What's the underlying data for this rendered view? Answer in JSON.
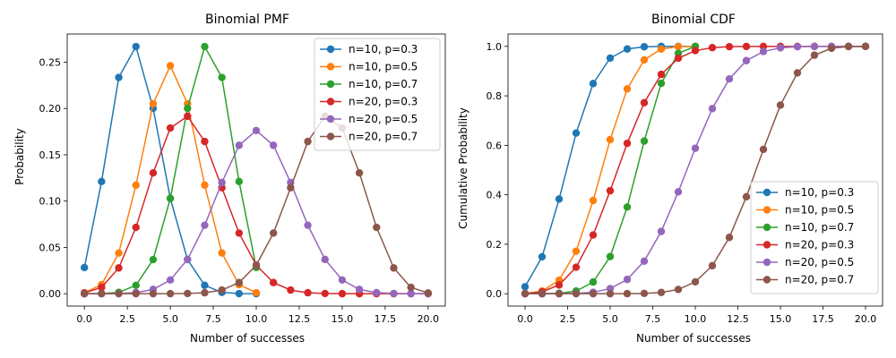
{
  "chart_data": [
    {
      "type": "line",
      "title": "Binomial PMF",
      "xlabel": "Number of successes",
      "ylabel": "Probability",
      "xlim": [
        -1,
        21
      ],
      "ylim": [
        -0.0134,
        0.2804
      ],
      "xticks": [
        0,
        2.5,
        5,
        7.5,
        10,
        12.5,
        15,
        17.5,
        20
      ],
      "xtick_labels": [
        "0.0",
        "2.5",
        "5.0",
        "7.5",
        "10.0",
        "12.5",
        "15.0",
        "17.5",
        "20.0"
      ],
      "yticks": [
        0,
        0.05,
        0.1,
        0.15,
        0.2,
        0.25
      ],
      "ytick_labels": [
        "0.00",
        "0.05",
        "0.10",
        "0.15",
        "0.20",
        "0.25"
      ],
      "grid": false,
      "legend_position": "top-right",
      "series": [
        {
          "name": "n=10, p=0.3",
          "color": "#1f77b4",
          "x": [
            0,
            1,
            2,
            3,
            4,
            5,
            6,
            7,
            8,
            9,
            10
          ],
          "y": [
            0.0282,
            0.1211,
            0.2335,
            0.2668,
            0.2001,
            0.1029,
            0.0368,
            0.009,
            0.0014,
            0.0001,
            0.0
          ]
        },
        {
          "name": "n=10, p=0.5",
          "color": "#ff7f0e",
          "x": [
            0,
            1,
            2,
            3,
            4,
            5,
            6,
            7,
            8,
            9,
            10
          ],
          "y": [
            0.001,
            0.0098,
            0.0439,
            0.1172,
            0.2051,
            0.2461,
            0.2051,
            0.1172,
            0.0439,
            0.0098,
            0.001
          ]
        },
        {
          "name": "n=10, p=0.7",
          "color": "#2ca02c",
          "x": [
            0,
            1,
            2,
            3,
            4,
            5,
            6,
            7,
            8,
            9,
            10
          ],
          "y": [
            0.0,
            0.0001,
            0.0014,
            0.009,
            0.0368,
            0.1029,
            0.2001,
            0.2668,
            0.2335,
            0.1211,
            0.0282
          ]
        },
        {
          "name": "n=20, p=0.3",
          "color": "#d62728",
          "x": [
            0,
            1,
            2,
            3,
            4,
            5,
            6,
            7,
            8,
            9,
            10,
            11,
            12,
            13,
            14,
            15,
            16,
            17,
            18,
            19,
            20
          ],
          "y": [
            0.0008,
            0.0068,
            0.0278,
            0.0716,
            0.1304,
            0.1789,
            0.1916,
            0.1643,
            0.1144,
            0.0654,
            0.0308,
            0.012,
            0.0039,
            0.001,
            0.0002,
            0.0,
            0.0,
            0.0,
            0.0,
            0.0,
            0.0
          ]
        },
        {
          "name": "n=20, p=0.5",
          "color": "#9467bd",
          "x": [
            0,
            1,
            2,
            3,
            4,
            5,
            6,
            7,
            8,
            9,
            10,
            11,
            12,
            13,
            14,
            15,
            16,
            17,
            18,
            19,
            20
          ],
          "y": [
            0.0,
            0.0,
            0.0002,
            0.0011,
            0.0046,
            0.0148,
            0.037,
            0.0739,
            0.1201,
            0.1602,
            0.1762,
            0.1602,
            0.1201,
            0.0739,
            0.037,
            0.0148,
            0.0046,
            0.0011,
            0.0002,
            0.0,
            0.0
          ]
        },
        {
          "name": "n=20, p=0.7",
          "color": "#8c564b",
          "x": [
            0,
            1,
            2,
            3,
            4,
            5,
            6,
            7,
            8,
            9,
            10,
            11,
            12,
            13,
            14,
            15,
            16,
            17,
            18,
            19,
            20
          ],
          "y": [
            0.0,
            0.0,
            0.0,
            0.0,
            0.0,
            0.0,
            0.0002,
            0.001,
            0.0039,
            0.012,
            0.0308,
            0.0654,
            0.1144,
            0.1643,
            0.1916,
            0.1789,
            0.1304,
            0.0716,
            0.0278,
            0.0068,
            0.0008
          ]
        }
      ]
    },
    {
      "type": "line",
      "title": "Binomial CDF",
      "xlabel": "Number of successes",
      "ylabel": "Cumulative Probability",
      "xlim": [
        -1,
        21
      ],
      "ylim": [
        -0.05,
        1.05
      ],
      "xticks": [
        0,
        2.5,
        5,
        7.5,
        10,
        12.5,
        15,
        17.5,
        20
      ],
      "xtick_labels": [
        "0.0",
        "2.5",
        "5.0",
        "7.5",
        "10.0",
        "12.5",
        "15.0",
        "17.5",
        "20.0"
      ],
      "yticks": [
        0,
        0.2,
        0.4,
        0.6,
        0.8,
        1.0
      ],
      "ytick_labels": [
        "0.0",
        "0.2",
        "0.4",
        "0.6",
        "0.8",
        "1.0"
      ],
      "grid": false,
      "legend_position": "bottom-right",
      "series": [
        {
          "name": "n=10, p=0.3",
          "color": "#1f77b4",
          "x": [
            0,
            1,
            2,
            3,
            4,
            5,
            6,
            7,
            8,
            9,
            10
          ],
          "y": [
            0.0282,
            0.1493,
            0.3828,
            0.6496,
            0.8497,
            0.9527,
            0.9894,
            0.9984,
            0.9999,
            1.0,
            1.0
          ]
        },
        {
          "name": "n=10, p=0.5",
          "color": "#ff7f0e",
          "x": [
            0,
            1,
            2,
            3,
            4,
            5,
            6,
            7,
            8,
            9,
            10
          ],
          "y": [
            0.001,
            0.0107,
            0.0547,
            0.1719,
            0.377,
            0.623,
            0.8281,
            0.9453,
            0.9893,
            0.999,
            1.0
          ]
        },
        {
          "name": "n=10, p=0.7",
          "color": "#2ca02c",
          "x": [
            0,
            1,
            2,
            3,
            4,
            5,
            6,
            7,
            8,
            9,
            10
          ],
          "y": [
            0.0,
            0.0001,
            0.0016,
            0.0106,
            0.0473,
            0.1503,
            0.3504,
            0.6172,
            0.8507,
            0.9718,
            1.0
          ]
        },
        {
          "name": "n=20, p=0.3",
          "color": "#d62728",
          "x": [
            0,
            1,
            2,
            3,
            4,
            5,
            6,
            7,
            8,
            9,
            10,
            11,
            12,
            13,
            14,
            15,
            16,
            17,
            18,
            19,
            20
          ],
          "y": [
            0.0008,
            0.0076,
            0.0355,
            0.1071,
            0.2375,
            0.4164,
            0.608,
            0.7723,
            0.8867,
            0.952,
            0.9829,
            0.9949,
            0.9987,
            0.9997,
            1.0,
            1.0,
            1.0,
            1.0,
            1.0,
            1.0,
            1.0
          ]
        },
        {
          "name": "n=20, p=0.5",
          "color": "#9467bd",
          "x": [
            0,
            1,
            2,
            3,
            4,
            5,
            6,
            7,
            8,
            9,
            10,
            11,
            12,
            13,
            14,
            15,
            16,
            17,
            18,
            19,
            20
          ],
          "y": [
            0.0,
            0.0,
            0.0002,
            0.0013,
            0.0059,
            0.0207,
            0.0577,
            0.1316,
            0.2517,
            0.4119,
            0.5881,
            0.7483,
            0.8684,
            0.9423,
            0.9793,
            0.9941,
            0.9987,
            0.9998,
            1.0,
            1.0,
            1.0
          ]
        },
        {
          "name": "n=20, p=0.7",
          "color": "#8c564b",
          "x": [
            0,
            1,
            2,
            3,
            4,
            5,
            6,
            7,
            8,
            9,
            10,
            11,
            12,
            13,
            14,
            15,
            16,
            17,
            18,
            19,
            20
          ],
          "y": [
            0.0,
            0.0,
            0.0,
            0.0,
            0.0,
            0.0,
            0.0003,
            0.0013,
            0.0051,
            0.0171,
            0.048,
            0.1133,
            0.2277,
            0.392,
            0.5836,
            0.7625,
            0.8929,
            0.9645,
            0.9924,
            0.9992,
            1.0
          ]
        }
      ]
    }
  ]
}
